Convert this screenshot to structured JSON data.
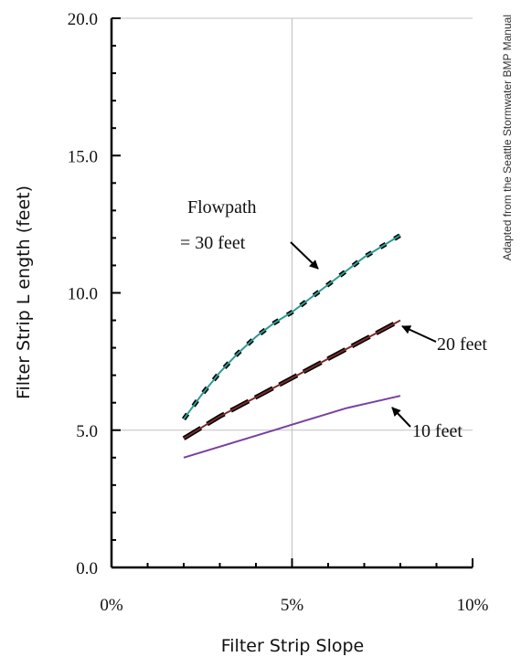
{
  "chart_data": {
    "type": "line",
    "xlabel": "Filter Strip Slope",
    "ylabel": "Filter Strip L ength (feet)",
    "xlim": [
      0,
      10
    ],
    "ylim": [
      0,
      20
    ],
    "x_ticks": [
      "0%",
      "5%",
      "10%"
    ],
    "y_ticks": [
      "0.0",
      "5.0",
      "10.0",
      "15.0",
      "20.0"
    ],
    "grid": "lines at x = 5% and y = 5.0",
    "series": [
      {
        "name": "Flowpath = 30 feet",
        "color": "#2e9a92",
        "x": [
          2.0,
          2.5,
          3.0,
          3.5,
          4.0,
          4.5,
          5.0,
          5.5,
          6.0,
          6.5,
          7.0,
          7.5,
          8.0
        ],
        "y": [
          5.4,
          6.3,
          7.1,
          7.8,
          8.4,
          8.9,
          9.3,
          9.8,
          10.3,
          10.8,
          11.3,
          11.7,
          12.1
        ]
      },
      {
        "name": "20 feet",
        "color": "#7a2a2a",
        "x": [
          2.0,
          3.0,
          4.0,
          5.0,
          6.0,
          7.0,
          8.0
        ],
        "y": [
          4.7,
          5.5,
          6.2,
          6.9,
          7.6,
          8.3,
          9.0
        ]
      },
      {
        "name": "10 feet",
        "color": "#7a3fa0",
        "x": [
          2.0,
          2.5,
          3.0,
          3.5,
          4.0,
          4.5,
          5.0,
          5.5,
          6.0,
          6.5,
          7.0,
          7.5,
          8.0
        ],
        "y": [
          4.0,
          4.2,
          4.4,
          4.6,
          4.8,
          5.0,
          5.2,
          5.4,
          5.6,
          5.8,
          5.95,
          6.1,
          6.25
        ]
      }
    ],
    "annotations": {
      "flowpath_line1": "Flowpath",
      "flowpath_line2": "=  30 feet",
      "label_20": "20 feet",
      "label_10": "10 feet"
    },
    "credit": "Adapted from the  Seattle Stormwater  BMP Manual"
  }
}
